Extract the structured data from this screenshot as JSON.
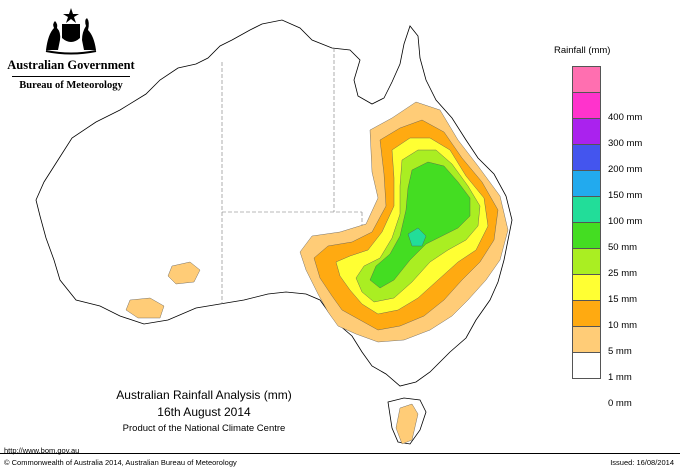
{
  "government": {
    "name": "Australian Government",
    "agency": "Bureau of Meteorology"
  },
  "legend": {
    "title": "Rainfall (mm)",
    "items": [
      {
        "label": "",
        "color": "#ff6fb0"
      },
      {
        "label": "400 mm",
        "color": "#ff33cc"
      },
      {
        "label": "300 mm",
        "color": "#aa22ee"
      },
      {
        "label": "200 mm",
        "color": "#4455ee"
      },
      {
        "label": "150 mm",
        "color": "#22aaee"
      },
      {
        "label": "100 mm",
        "color": "#22dd99"
      },
      {
        "label": "50 mm",
        "color": "#44dd22"
      },
      {
        "label": "25 mm",
        "color": "#aaee22"
      },
      {
        "label": "15 mm",
        "color": "#ffff33"
      },
      {
        "label": "10 mm",
        "color": "#ffaa11"
      },
      {
        "label": "5 mm",
        "color": "#ffcc77"
      },
      {
        "label": "1 mm",
        "color": "#ffffff"
      },
      {
        "label": "0 mm",
        "color": ""
      }
    ]
  },
  "map": {
    "colors": {
      "coast": "#000000",
      "border": "#777777",
      "r1": "#ffcc77",
      "r5": "#ffaa11",
      "r10": "#ffff33",
      "r15": "#aaee22",
      "r25": "#44dd22",
      "r50": "#22dd99"
    }
  },
  "caption": {
    "title": "Australian Rainfall Analysis (mm)",
    "date": "16th August 2014",
    "producer": "Product of the National Climate Centre"
  },
  "footer": {
    "url": "http://www.bom.gov.au",
    "copyright": "© Commonwealth of Australia 2014, Australian Bureau of Meteorology",
    "issued": "Issued: 16/08/2014"
  }
}
